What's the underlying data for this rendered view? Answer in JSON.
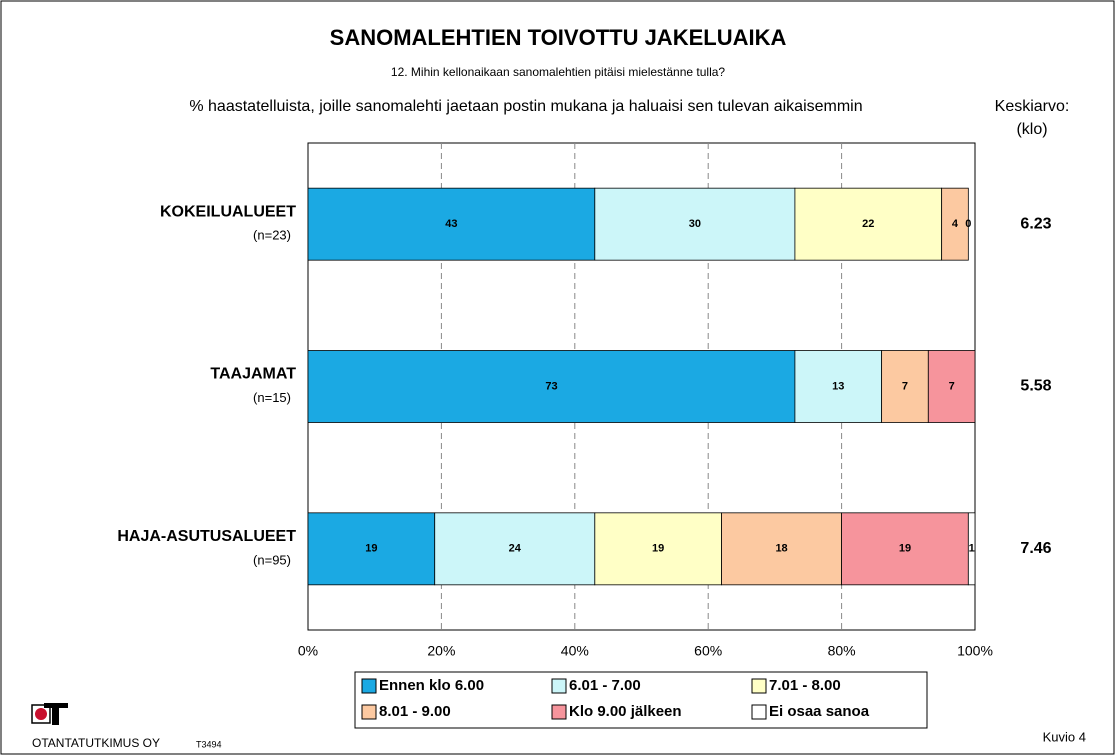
{
  "chart_data": {
    "type": "stacked-bar-horizontal",
    "title": "SANOMALEHTIEN TOIVOTTU JAKELUAIKA",
    "subtitle": "12. Mihin kellonaikaan sanomalehtien pitäisi mielestänne tulla?",
    "note": "% haastatelluista, joille sanomalehti jaetaan postin mukana ja haluaisi sen tulevan aikaisemmin",
    "mean_title": "Keskiarvo:",
    "mean_unit": "(klo)",
    "categories": [
      "KOKEILUALUEET",
      "TAAJAMAT",
      "HAJA-ASUTUSALUEET"
    ],
    "group_sizes": [
      "(n=23)",
      "(n=15)",
      "(n=95)"
    ],
    "means": [
      6.23,
      5.58,
      7.46
    ],
    "series": [
      {
        "name": "Ennen klo 6.00",
        "color": "#1ba9e3",
        "values": [
          43,
          73,
          19
        ]
      },
      {
        "name": "6.01 - 7.00",
        "color": "#ccf6f9",
        "values": [
          30,
          13,
          24
        ]
      },
      {
        "name": "7.01 - 8.00",
        "color": "#ffffc6",
        "values": [
          22,
          null,
          19
        ]
      },
      {
        "name": "8.01 - 9.00",
        "color": "#fcc9a1",
        "values": [
          4,
          7,
          18
        ]
      },
      {
        "name": "Klo 9.00 jälkeen",
        "color": "#f6949c",
        "values": [
          0,
          7,
          19
        ]
      },
      {
        "name": "Ei osaa sanoa",
        "color": "#ffffff",
        "values": [
          null,
          null,
          1
        ]
      }
    ],
    "xlim": [
      0,
      100
    ],
    "xticks": [
      {
        "value": 0,
        "label": "0%"
      },
      {
        "value": 20,
        "label": "20%"
      },
      {
        "value": 40,
        "label": "40%"
      },
      {
        "value": 60,
        "label": "60%"
      },
      {
        "value": 80,
        "label": "80%"
      },
      {
        "value": 100,
        "label": "100%"
      }
    ],
    "grid": true,
    "footer": {
      "company": "OTANTATUTKIMUS OY",
      "code": "T3494",
      "figure": "Kuvio 4"
    }
  }
}
